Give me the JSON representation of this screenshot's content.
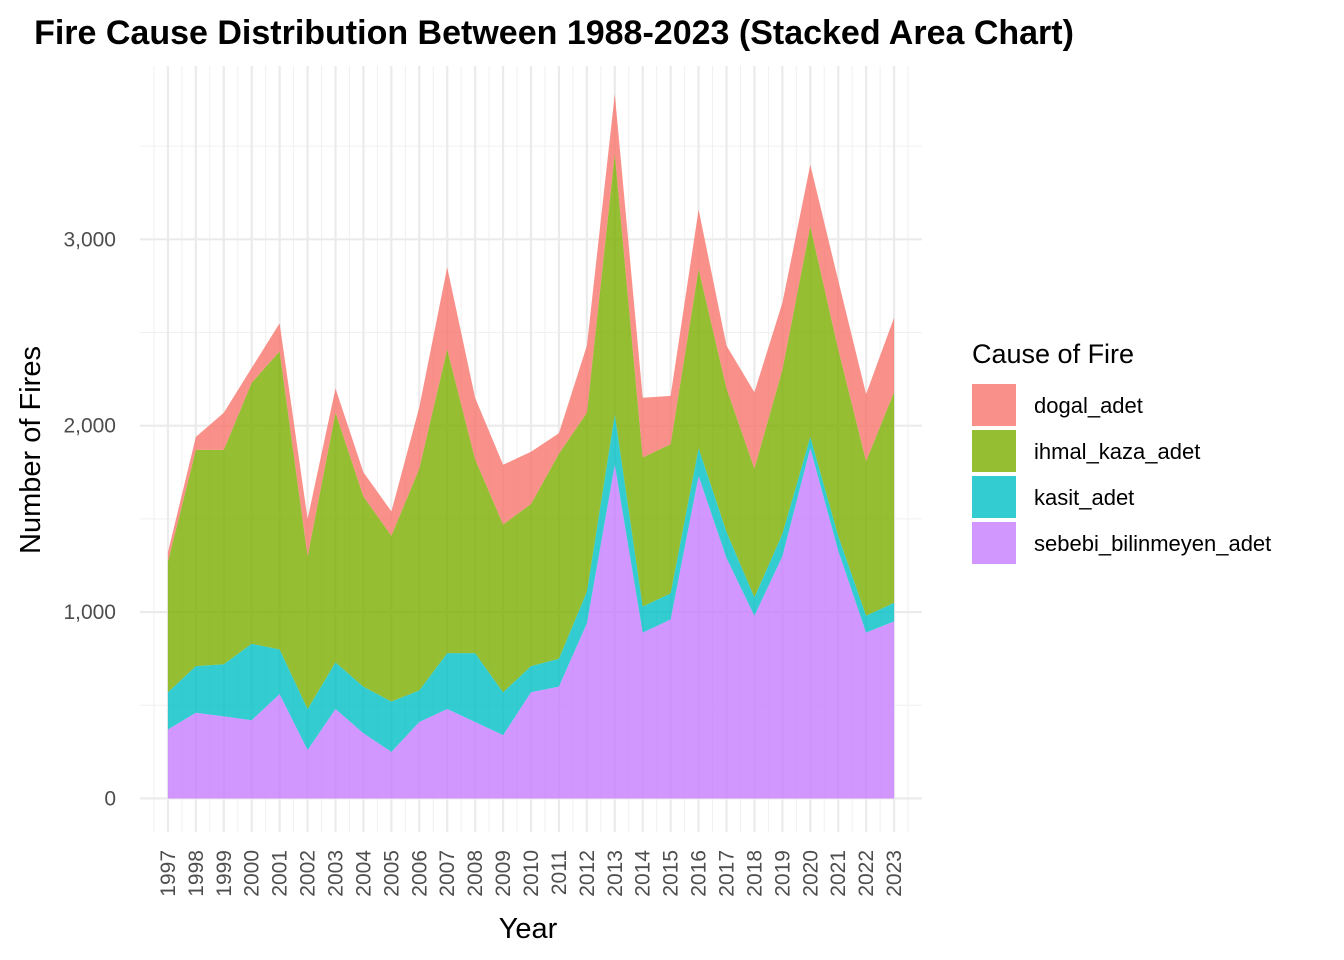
{
  "chart_data": {
    "type": "area",
    "stacked": true,
    "title": "Fire Cause Distribution Between 1988-2023 (Stacked Area Chart)",
    "xlabel": "Year",
    "ylabel": "Number of Fires",
    "x": [
      1997,
      1998,
      1999,
      2000,
      2001,
      2002,
      2003,
      2004,
      2005,
      2006,
      2007,
      2008,
      2009,
      2010,
      2011,
      2012,
      2013,
      2014,
      2015,
      2016,
      2017,
      2018,
      2019,
      2020,
      2021,
      2022,
      2023
    ],
    "xlim": [
      1996,
      2024
    ],
    "ylim": [
      -180,
      3930
    ],
    "y_ticks": [
      0,
      1000,
      2000,
      3000
    ],
    "y_tick_labels": [
      "0",
      "1,000",
      "2,000",
      "3,000"
    ],
    "grid": true,
    "legend": {
      "title": "Cause of Fire",
      "position": "right"
    },
    "series": [
      {
        "name": "sebebi_bilinmeyen_adet",
        "color": "#C77CFF",
        "values": [
          370,
          460,
          440,
          420,
          560,
          260,
          480,
          350,
          250,
          410,
          480,
          410,
          340,
          570,
          600,
          940,
          1790,
          890,
          960,
          1730,
          1290,
          980,
          1300,
          1880,
          1330,
          890,
          950
        ]
      },
      {
        "name": "kasit_adet",
        "color": "#00BFC4",
        "values": [
          200,
          250,
          280,
          410,
          240,
          220,
          250,
          250,
          270,
          170,
          300,
          370,
          230,
          140,
          150,
          170,
          270,
          140,
          140,
          150,
          140,
          100,
          120,
          60,
          80,
          90,
          100
        ]
      },
      {
        "name": "ihmal_kaza_adet",
        "color": "#7CAE00",
        "values": [
          700,
          1160,
          1150,
          1400,
          1600,
          820,
          1340,
          1020,
          890,
          1190,
          1630,
          1040,
          900,
          870,
          1100,
          960,
          1400,
          800,
          800,
          960,
          770,
          690,
          880,
          1130,
          1000,
          830,
          1130
        ]
      },
      {
        "name": "dogal_adet",
        "color": "#F8766D",
        "values": [
          50,
          70,
          200,
          80,
          150,
          200,
          130,
          130,
          130,
          330,
          440,
          330,
          320,
          280,
          110,
          360,
          320,
          320,
          260,
          320,
          230,
          410,
          360,
          330,
          370,
          360,
          400
        ]
      }
    ],
    "legend_order": [
      "dogal_adet",
      "ihmal_kaza_adet",
      "kasit_adet",
      "sebebi_bilinmeyen_adet"
    ]
  }
}
